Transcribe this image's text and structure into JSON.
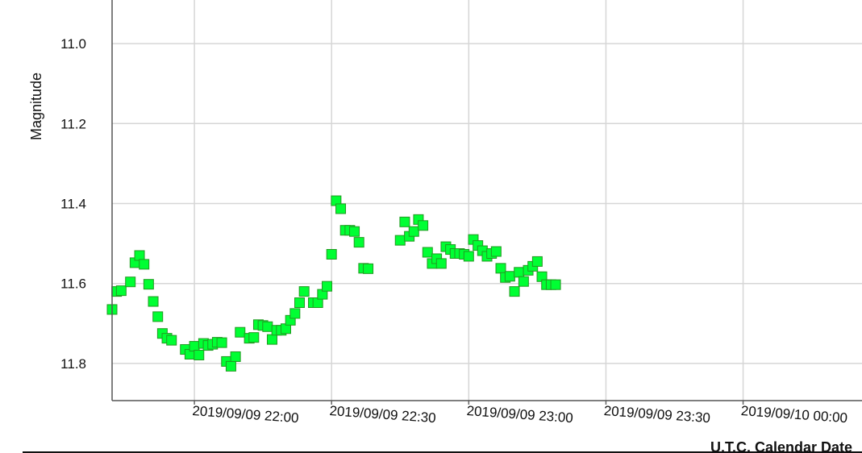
{
  "chart_data": {
    "type": "scatter",
    "title": "",
    "xlabel": "U.T.C. Calendar Date",
    "ylabel": "Magnitude",
    "y_inverted": true,
    "ylim": [
      11.9,
      10.9
    ],
    "xlim": [
      "2019/09/09 21:42",
      "2019/09/10 00:26"
    ],
    "yticks": [
      "11.0",
      "11.2",
      "11.4",
      "11.6",
      "11.8"
    ],
    "xticks": [
      "2019/09/09 22:00",
      "2019/09/09 22:30",
      "2019/09/09 23:00",
      "2019/09/09 23:30",
      "2019/09/10 00:00"
    ],
    "grid": true,
    "marker": "square",
    "marker_color": "#00ff33",
    "marker_edge": "#229922",
    "points": [
      {
        "t": "2019/09/09 21:42",
        "mag": 11.665
      },
      {
        "t": "2019/09/09 21:43",
        "mag": 11.62
      },
      {
        "t": "2019/09/09 21:44",
        "mag": 11.618
      },
      {
        "t": "2019/09/09 21:46",
        "mag": 11.596
      },
      {
        "t": "2019/09/09 21:47",
        "mag": 11.548
      },
      {
        "t": "2019/09/09 21:48",
        "mag": 11.53
      },
      {
        "t": "2019/09/09 21:49",
        "mag": 11.552
      },
      {
        "t": "2019/09/09 21:50",
        "mag": 11.602
      },
      {
        "t": "2019/09/09 21:51",
        "mag": 11.645
      },
      {
        "t": "2019/09/09 21:52",
        "mag": 11.683
      },
      {
        "t": "2019/09/09 21:53",
        "mag": 11.725
      },
      {
        "t": "2019/09/09 21:54",
        "mag": 11.737
      },
      {
        "t": "2019/09/09 21:55",
        "mag": 11.742
      },
      {
        "t": "2019/09/09 21:58",
        "mag": 11.765
      },
      {
        "t": "2019/09/09 21:59",
        "mag": 11.777
      },
      {
        "t": "2019/09/09 22:00",
        "mag": 11.757
      },
      {
        "t": "2019/09/09 22:01",
        "mag": 11.779
      },
      {
        "t": "2019/09/09 22:02",
        "mag": 11.75
      },
      {
        "t": "2019/09/09 22:03",
        "mag": 11.755
      },
      {
        "t": "2019/09/09 22:04",
        "mag": 11.752
      },
      {
        "t": "2019/09/09 22:05",
        "mag": 11.747
      },
      {
        "t": "2019/09/09 22:06",
        "mag": 11.748
      },
      {
        "t": "2019/09/09 22:07",
        "mag": 11.795
      },
      {
        "t": "2019/09/09 22:08",
        "mag": 11.807
      },
      {
        "t": "2019/09/09 22:09",
        "mag": 11.783
      },
      {
        "t": "2019/09/09 22:10",
        "mag": 11.722
      },
      {
        "t": "2019/09/09 22:12",
        "mag": 11.737
      },
      {
        "t": "2019/09/09 22:13",
        "mag": 11.735
      },
      {
        "t": "2019/09/09 22:14",
        "mag": 11.703
      },
      {
        "t": "2019/09/09 22:15",
        "mag": 11.705
      },
      {
        "t": "2019/09/09 22:16",
        "mag": 11.708
      },
      {
        "t": "2019/09/09 22:17",
        "mag": 11.74
      },
      {
        "t": "2019/09/09 22:18",
        "mag": 11.717
      },
      {
        "t": "2019/09/09 22:19",
        "mag": 11.717
      },
      {
        "t": "2019/09/09 22:20",
        "mag": 11.713
      },
      {
        "t": "2019/09/09 22:21",
        "mag": 11.692
      },
      {
        "t": "2019/09/09 22:22",
        "mag": 11.675
      },
      {
        "t": "2019/09/09 22:23",
        "mag": 11.648
      },
      {
        "t": "2019/09/09 22:24",
        "mag": 11.62
      },
      {
        "t": "2019/09/09 22:26",
        "mag": 11.648
      },
      {
        "t": "2019/09/09 22:27",
        "mag": 11.648
      },
      {
        "t": "2019/09/09 22:28",
        "mag": 11.627
      },
      {
        "t": "2019/09/09 22:29",
        "mag": 11.607
      },
      {
        "t": "2019/09/09 22:30",
        "mag": 11.527
      },
      {
        "t": "2019/09/09 22:31",
        "mag": 11.393
      },
      {
        "t": "2019/09/09 22:32",
        "mag": 11.413
      },
      {
        "t": "2019/09/09 22:33",
        "mag": 11.467
      },
      {
        "t": "2019/09/09 22:34",
        "mag": 11.467
      },
      {
        "t": "2019/09/09 22:35",
        "mag": 11.47
      },
      {
        "t": "2019/09/09 22:36",
        "mag": 11.497
      },
      {
        "t": "2019/09/09 22:37",
        "mag": 11.562
      },
      {
        "t": "2019/09/09 22:38",
        "mag": 11.563
      },
      {
        "t": "2019/09/09 22:45",
        "mag": 11.492
      },
      {
        "t": "2019/09/09 22:46",
        "mag": 11.446
      },
      {
        "t": "2019/09/09 22:47",
        "mag": 11.482
      },
      {
        "t": "2019/09/09 22:48",
        "mag": 11.47
      },
      {
        "t": "2019/09/09 22:49",
        "mag": 11.44
      },
      {
        "t": "2019/09/09 22:50",
        "mag": 11.455
      },
      {
        "t": "2019/09/09 22:51",
        "mag": 11.522
      },
      {
        "t": "2019/09/09 22:52",
        "mag": 11.55
      },
      {
        "t": "2019/09/09 22:53",
        "mag": 11.538
      },
      {
        "t": "2019/09/09 22:54",
        "mag": 11.55
      },
      {
        "t": "2019/09/09 22:55",
        "mag": 11.508
      },
      {
        "t": "2019/09/09 22:56",
        "mag": 11.515
      },
      {
        "t": "2019/09/09 22:57",
        "mag": 11.525
      },
      {
        "t": "2019/09/09 22:58",
        "mag": 11.525
      },
      {
        "t": "2019/09/09 22:59",
        "mag": 11.527
      },
      {
        "t": "2019/09/09 23:00",
        "mag": 11.532
      },
      {
        "t": "2019/09/09 23:01",
        "mag": 11.49
      },
      {
        "t": "2019/09/09 23:02",
        "mag": 11.505
      },
      {
        "t": "2019/09/09 23:03",
        "mag": 11.518
      },
      {
        "t": "2019/09/09 23:04",
        "mag": 11.532
      },
      {
        "t": "2019/09/09 23:05",
        "mag": 11.525
      },
      {
        "t": "2019/09/09 23:06",
        "mag": 11.52
      },
      {
        "t": "2019/09/09 23:07",
        "mag": 11.562
      },
      {
        "t": "2019/09/09 23:08",
        "mag": 11.585
      },
      {
        "t": "2019/09/09 23:09",
        "mag": 11.582
      },
      {
        "t": "2019/09/09 23:10",
        "mag": 11.62
      },
      {
        "t": "2019/09/09 23:11",
        "mag": 11.572
      },
      {
        "t": "2019/09/09 23:12",
        "mag": 11.595
      },
      {
        "t": "2019/09/09 23:13",
        "mag": 11.567
      },
      {
        "t": "2019/09/09 23:14",
        "mag": 11.557
      },
      {
        "t": "2019/09/09 23:15",
        "mag": 11.545
      },
      {
        "t": "2019/09/09 23:16",
        "mag": 11.583
      },
      {
        "t": "2019/09/09 23:17",
        "mag": 11.603
      },
      {
        "t": "2019/09/09 23:18",
        "mag": 11.603
      },
      {
        "t": "2019/09/09 23:19",
        "mag": 11.603
      }
    ]
  }
}
